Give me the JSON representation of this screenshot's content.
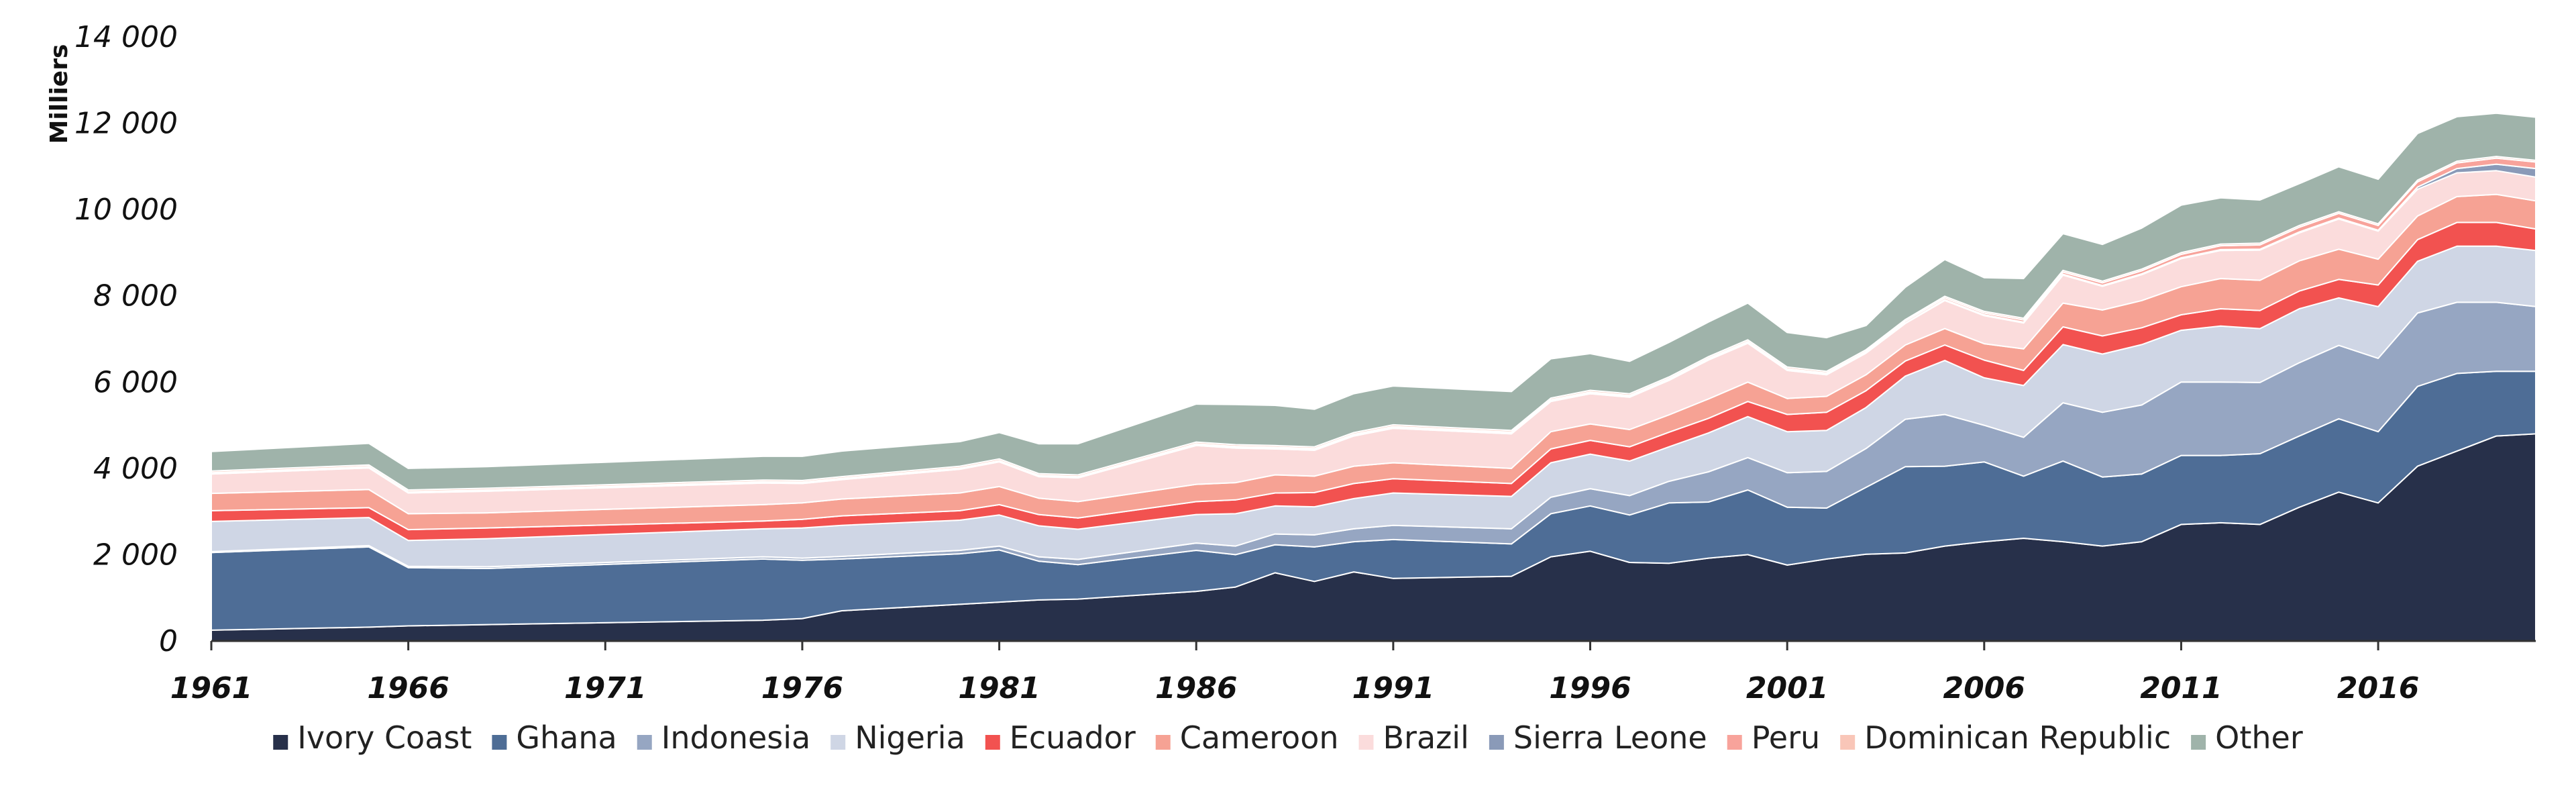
{
  "chart_data": {
    "type": "area",
    "stacked": true,
    "ylabel": "Milliers",
    "xlabel": "",
    "ylim": [
      0,
      14000
    ],
    "yticks": [
      0,
      2000,
      4000,
      6000,
      8000,
      10000,
      12000,
      14000
    ],
    "ytick_labels": [
      "0",
      "2 000",
      "4 000",
      "6 000",
      "8 000",
      "10 000",
      "12 000",
      "14 000"
    ],
    "xlim": [
      1961,
      2020
    ],
    "xticks": [
      1961,
      1966,
      1971,
      1976,
      1981,
      1986,
      1991,
      1996,
      2001,
      2006,
      2011,
      2016
    ],
    "grid": false,
    "legend_position": "bottom",
    "x": [
      1961,
      1965,
      1966,
      1968,
      1975,
      1976,
      1977,
      1980,
      1981,
      1982,
      1983,
      1986,
      1987,
      1988,
      1989,
      1990,
      1991,
      1994,
      1995,
      1996,
      1997,
      1998,
      1999,
      2000,
      2001,
      2002,
      2003,
      2004,
      2005,
      2006,
      2007,
      2008,
      2009,
      2010,
      2011,
      2012,
      2013,
      2014,
      2015,
      2016,
      2017,
      2018,
      2019,
      2020
    ],
    "series": [
      {
        "name": "Ivory Coast",
        "color": "#27304a",
        "values": [
          250,
          320,
          350,
          380,
          480,
          520,
          700,
          850,
          900,
          950,
          970,
          1150,
          1250,
          1580,
          1380,
          1600,
          1450,
          1500,
          1950,
          2080,
          1820,
          1800,
          1920,
          2000,
          1760,
          1900,
          2010,
          2040,
          2200,
          2300,
          2380,
          2300,
          2200,
          2300,
          2700,
          2740,
          2700,
          3100,
          3450,
          3200,
          4050,
          4400,
          4750,
          4800
        ]
      },
      {
        "name": "Ghana",
        "color": "#4e6d96",
        "values": [
          1800,
          1860,
          1350,
          1300,
          1420,
          1350,
          1200,
          1170,
          1210,
          900,
          800,
          950,
          750,
          650,
          800,
          700,
          900,
          750,
          1000,
          1050,
          1100,
          1400,
          1300,
          1500,
          1340,
          1180,
          1550,
          2000,
          1850,
          1850,
          1440,
          1870,
          1600,
          1570,
          1600,
          1560,
          1640,
          1650,
          1700,
          1650,
          1850,
          1800,
          1500,
          1450
        ]
      },
      {
        "name": "Indonesia",
        "color": "#96a6c2",
        "values": [
          20,
          30,
          30,
          40,
          50,
          50,
          60,
          80,
          90,
          100,
          120,
          170,
          200,
          250,
          280,
          300,
          330,
          350,
          380,
          400,
          450,
          500,
          700,
          750,
          800,
          850,
          900,
          1100,
          1200,
          850,
          900,
          1350,
          1500,
          1600,
          1700,
          1700,
          1650,
          1700,
          1700,
          1700,
          1700,
          1650,
          1600,
          1500
        ]
      },
      {
        "name": "Nigeria",
        "color": "#cfd6e5",
        "values": [
          700,
          650,
          600,
          650,
          650,
          700,
          720,
          700,
          720,
          720,
          700,
          660,
          750,
          650,
          650,
          700,
          750,
          750,
          800,
          800,
          800,
          800,
          900,
          950,
          950,
          950,
          950,
          1000,
          1250,
          1100,
          1200,
          1350,
          1350,
          1400,
          1200,
          1300,
          1250,
          1250,
          1100,
          1200,
          1200,
          1300,
          1300,
          1300
        ]
      },
      {
        "name": "Ecuador",
        "color": "#f25250",
        "values": [
          250,
          230,
          250,
          250,
          180,
          200,
          220,
          220,
          240,
          260,
          260,
          300,
          320,
          300,
          330,
          350,
          330,
          300,
          320,
          320,
          330,
          340,
          340,
          350,
          400,
          420,
          390,
          350,
          360,
          410,
          350,
          410,
          420,
          390,
          360,
          400,
          420,
          410,
          430,
          500,
          500,
          550,
          550,
          500
        ]
      },
      {
        "name": "Cameroon",
        "color": "#f6a294",
        "values": [
          400,
          420,
          370,
          350,
          380,
          380,
          390,
          410,
          420,
          380,
          380,
          400,
          400,
          420,
          380,
          400,
          370,
          350,
          400,
          380,
          400,
          400,
          450,
          450,
          370,
          370,
          370,
          370,
          380,
          380,
          500,
          550,
          600,
          630,
          650,
          700,
          700,
          700,
          700,
          600,
          550,
          600,
          650,
          650
        ]
      },
      {
        "name": "Brazil",
        "color": "#fbdcdc",
        "values": [
          450,
          500,
          480,
          500,
          500,
          450,
          450,
          550,
          570,
          500,
          550,
          900,
          800,
          600,
          600,
          700,
          800,
          800,
          700,
          700,
          750,
          800,
          900,
          900,
          650,
          500,
          500,
          500,
          650,
          650,
          600,
          650,
          550,
          600,
          650,
          650,
          700,
          650,
          700,
          650,
          620,
          550,
          550,
          550
        ]
      },
      {
        "name": "Sierra Leone",
        "color": "#8a9ab8",
        "values": [
          10,
          10,
          10,
          10,
          10,
          10,
          10,
          10,
          10,
          10,
          10,
          10,
          10,
          10,
          10,
          10,
          10,
          10,
          10,
          10,
          10,
          10,
          10,
          10,
          10,
          10,
          10,
          10,
          20,
          20,
          20,
          20,
          20,
          20,
          20,
          20,
          20,
          20,
          20,
          20,
          50,
          100,
          150,
          200
        ]
      },
      {
        "name": "Peru",
        "color": "#f8a39b",
        "values": [
          20,
          20,
          20,
          20,
          20,
          20,
          20,
          20,
          20,
          20,
          20,
          30,
          30,
          30,
          30,
          30,
          30,
          30,
          30,
          30,
          30,
          30,
          30,
          30,
          30,
          30,
          30,
          40,
          40,
          40,
          50,
          50,
          60,
          70,
          80,
          90,
          100,
          110,
          110,
          110,
          120,
          130,
          140,
          150
        ]
      },
      {
        "name": "Dominican Republic",
        "color": "#f9c6b8",
        "values": [
          40,
          40,
          40,
          40,
          40,
          40,
          40,
          40,
          40,
          40,
          40,
          40,
          40,
          40,
          40,
          40,
          40,
          40,
          40,
          40,
          40,
          40,
          40,
          40,
          40,
          40,
          40,
          40,
          40,
          40,
          40,
          40,
          40,
          40,
          40,
          40,
          40,
          40,
          40,
          40,
          40,
          40,
          40,
          40
        ]
      },
      {
        "name": "Other",
        "color": "#9fb3aa",
        "values": [
          450,
          500,
          500,
          500,
          550,
          560,
          590,
          570,
          610,
          690,
          720,
          880,
          930,
          930,
          870,
          900,
          900,
          900,
          910,
          850,
          750,
          800,
          800,
          850,
          800,
          780,
          560,
          750,
          850,
          780,
          920,
          850,
          850,
          950,
          1100,
          1070,
          1000,
          970,
          1040,
          1030,
          1080,
          1030,
          1000,
          1000
        ]
      }
    ]
  }
}
